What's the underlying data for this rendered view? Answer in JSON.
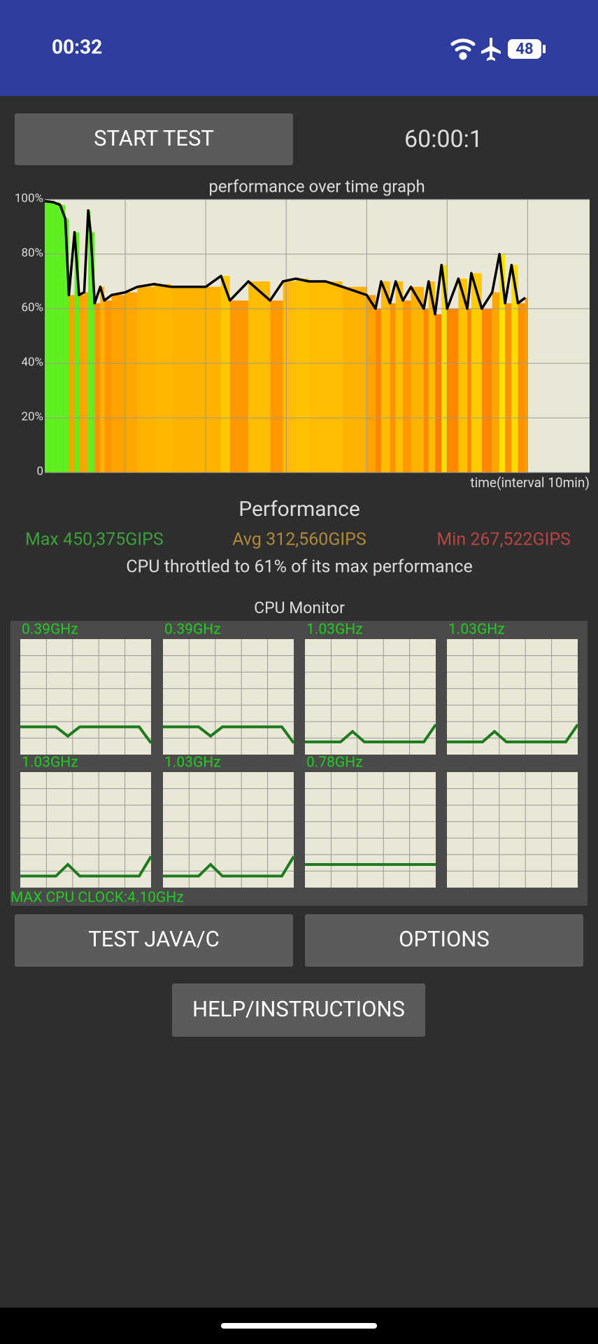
{
  "status_bar": {
    "time": "00:32",
    "battery": "48"
  },
  "buttons": {
    "start": "START TEST",
    "java": "TEST JAVA/C",
    "options": "OPTIONS",
    "help": "HELP/INSTRUCTIONS"
  },
  "timer": "60:00:1",
  "chart_data": {
    "type": "line",
    "title": "performance over time graph",
    "x_label": "time(interval 10min)",
    "x": [
      0,
      1.06,
      1.9,
      2.55,
      3.0,
      3.7,
      4.26,
      4.9,
      5.4,
      5.7,
      6.2,
      6.9,
      7.4,
      8.3,
      10,
      11.5,
      13.6,
      15.7,
      17.9,
      20,
      21.9,
      23,
      25.3,
      28,
      29.6,
      31.2,
      32.8,
      34.9,
      37,
      40,
      41.1,
      41.8,
      42.9,
      43.6,
      44.5,
      45.5,
      47.1,
      47.7,
      48.5,
      49.3,
      50,
      51.4,
      52.5,
      53,
      54.3,
      55.6,
      56.5,
      57.2,
      58,
      58.8,
      59.7
    ],
    "series": [
      {
        "color": "#000000",
        "values": [
          99.4,
          99,
          98,
          93,
          65,
          88,
          65,
          66,
          96,
          88,
          62,
          68,
          63,
          65,
          66,
          68,
          69,
          68,
          68,
          68,
          72,
          63,
          70,
          63,
          70,
          71,
          70,
          70,
          68,
          65,
          60,
          70,
          62,
          70,
          63,
          68,
          60,
          70,
          58,
          76,
          60,
          71,
          60,
          73,
          60,
          66,
          80,
          62,
          76,
          62,
          64
        ]
      }
    ],
    "xlim": [
      0,
      67.7
    ],
    "xgrid": [
      10,
      20,
      30,
      40,
      50,
      60
    ],
    "ylim": [
      0,
      100
    ],
    "yticks": [
      0,
      {
        "value": 20,
        "label": "20%"
      },
      {
        "value": 40,
        "label": "40%"
      },
      {
        "value": 60,
        "label": "60%"
      },
      {
        "value": 80,
        "label": "80%"
      },
      {
        "value": 100,
        "label": "100%"
      }
    ],
    "grid": true
  },
  "stats": {
    "title": "Performance",
    "max": "Max 450,375GIPS",
    "avg": "Avg 312,560GIPS",
    "min": "Min 267,522GIPS",
    "throttle": "CPU throttled to 61% of its max performance"
  },
  "cpu_monitor": {
    "title": "CPU Monitor",
    "ylim": [
      0,
      100
    ],
    "cores": [
      {
        "label": "0.39GHz",
        "values": [
          24,
          24,
          24,
          24,
          16,
          24,
          24,
          24,
          24,
          24,
          24,
          10
        ]
      },
      {
        "label": "0.39GHz",
        "values": [
          24,
          24,
          24,
          24,
          16,
          24,
          24,
          24,
          24,
          24,
          24,
          10
        ]
      },
      {
        "label": "1.03GHz",
        "values": [
          11,
          11,
          11,
          11,
          20,
          11,
          11,
          11,
          11,
          11,
          11,
          26
        ]
      },
      {
        "label": "1.03GHz",
        "values": [
          11,
          11,
          11,
          11,
          20,
          11,
          11,
          11,
          11,
          11,
          11,
          26
        ]
      },
      {
        "label": "1.03GHz",
        "values": [
          10,
          10,
          10,
          10,
          20,
          10,
          10,
          10,
          10,
          10,
          10,
          27
        ]
      },
      {
        "label": "1.03GHz",
        "values": [
          10,
          10,
          10,
          10,
          20,
          10,
          10,
          10,
          10,
          10,
          10,
          27
        ]
      },
      {
        "label": "0.78GHz",
        "values": [
          20,
          20,
          20,
          20,
          20,
          20,
          20,
          20,
          20,
          20,
          20,
          20
        ]
      }
    ],
    "max_clock": "MAX CPU CLOCK:4.10GHz"
  }
}
